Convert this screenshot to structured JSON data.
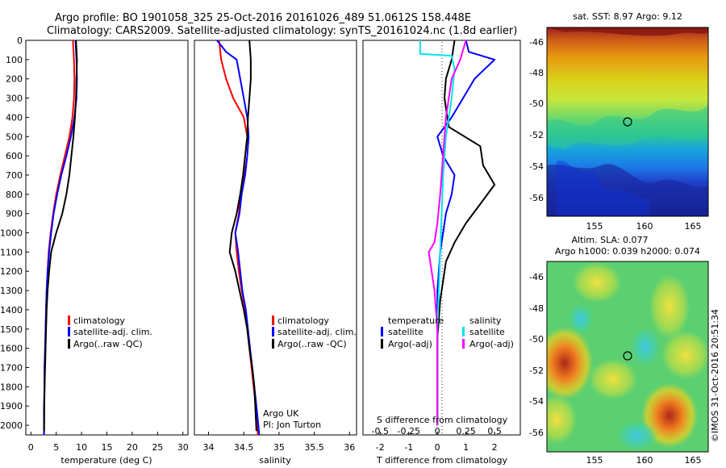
{
  "header": {
    "line1": "Argo profile: BO 1901058_325 25-Oct-2016 20161026_489 51.0612S 158.448E",
    "line2": "Climatology: CARS2009. Satellite-adjusted climatology: synTS_20161024.nc (1.8d earlier)"
  },
  "side_text": "©IMOS 31-Oct-2016 20:51:34",
  "colors": {
    "climatology": "#ff0000",
    "satellite": "#0000ff",
    "argo": "#000000",
    "cyan": "#00e5ee",
    "magenta": "#ff00ff"
  },
  "chart_data": [
    {
      "type": "line",
      "xlabel": "temperature (deg C)",
      "ylabel": "",
      "xlim": [
        -1,
        31
      ],
      "ylim": [
        2050,
        0
      ],
      "xticks": [
        "0",
        "5",
        "10",
        "15",
        "20",
        "25",
        "30"
      ],
      "yticks": [
        "0",
        "100",
        "200",
        "300",
        "400",
        "500",
        "600",
        "700",
        "800",
        "900",
        "1000",
        "1100",
        "1200",
        "1300",
        "1400",
        "1500",
        "1600",
        "1700",
        "1800",
        "1900",
        "2000"
      ],
      "legend": [
        "climatology",
        "satellite-adj. clim.",
        "Argo(..raw -QC)"
      ],
      "series": [
        {
          "name": "climatology",
          "color": "#ff0000",
          "x": [
            8.3,
            8.5,
            8.6,
            8.5,
            8.2,
            7.6,
            6.7,
            5.8,
            5.0,
            4.4,
            3.9,
            3.5,
            3.3,
            3.1,
            3.0,
            2.9,
            2.8,
            2.7,
            2.7,
            2.6,
            2.6
          ],
          "y": [
            0,
            100,
            200,
            300,
            400,
            500,
            600,
            700,
            800,
            900,
            1000,
            1100,
            1200,
            1300,
            1400,
            1500,
            1600,
            1700,
            1800,
            1900,
            2050
          ]
        },
        {
          "name": "satellite-adj. clim.",
          "color": "#0000ff",
          "x": [
            8.8,
            9.0,
            9.1,
            9.0,
            8.6,
            7.9,
            7.0,
            6.0,
            5.2,
            4.5,
            4.0,
            3.6,
            3.3,
            3.1,
            3.0,
            2.9,
            2.8,
            2.7,
            2.7,
            2.6,
            2.6
          ],
          "y": [
            0,
            100,
            200,
            300,
            400,
            500,
            600,
            700,
            800,
            900,
            1000,
            1100,
            1200,
            1300,
            1400,
            1500,
            1600,
            1700,
            1800,
            1900,
            2050
          ]
        },
        {
          "name": "Argo(..raw -QC)",
          "color": "#000000",
          "x": [
            8.9,
            9.1,
            9.0,
            8.9,
            8.7,
            8.4,
            8.0,
            7.6,
            7.0,
            6.2,
            5.0,
            4.0,
            3.6,
            3.3,
            3.1,
            3.0,
            2.9,
            2.8,
            2.7,
            2.6
          ],
          "y": [
            0,
            100,
            200,
            300,
            400,
            500,
            600,
            700,
            800,
            900,
            1000,
            1100,
            1200,
            1300,
            1400,
            1500,
            1600,
            1700,
            1800,
            2030
          ]
        }
      ]
    },
    {
      "type": "line",
      "xlabel": "salinity",
      "xlim": [
        33.8,
        36.1
      ],
      "ylim": [
        2050,
        0
      ],
      "xticks": [
        "34",
        "34.5",
        "35",
        "35.5",
        "36"
      ],
      "legend": [
        "climatology",
        "satellite-adj. clim.",
        "Argo(..raw -QC)"
      ],
      "annotation": [
        "Argo UK",
        "PI: Jon Turton"
      ],
      "series": [
        {
          "name": "climatology",
          "color": "#ff0000",
          "x": [
            34.15,
            34.18,
            34.25,
            34.35,
            34.5,
            34.55,
            34.52,
            34.5,
            34.45,
            34.43,
            34.38,
            34.4,
            34.43,
            34.47,
            34.52,
            34.55,
            34.58,
            34.61,
            34.64,
            34.67,
            34.7
          ],
          "y": [
            0,
            100,
            200,
            300,
            400,
            500,
            600,
            700,
            800,
            900,
            1000,
            1100,
            1200,
            1300,
            1400,
            1500,
            1600,
            1700,
            1800,
            1900,
            2050
          ]
        },
        {
          "name": "satellite-adj. clim.",
          "color": "#0000ff",
          "x": [
            34.12,
            34.25,
            34.4,
            34.5,
            34.55,
            34.57,
            34.55,
            34.52,
            34.47,
            34.44,
            34.38,
            34.42,
            34.45,
            34.48,
            34.53,
            34.56,
            34.59,
            34.62,
            34.65,
            34.68,
            34.72
          ],
          "y": [
            0,
            60,
            100,
            300,
            400,
            500,
            600,
            700,
            800,
            900,
            1000,
            1100,
            1200,
            1300,
            1400,
            1500,
            1600,
            1700,
            1800,
            1900,
            2050
          ]
        },
        {
          "name": "Argo(..raw -QC)",
          "color": "#000000",
          "x": [
            34.58,
            34.6,
            34.6,
            34.58,
            34.56,
            34.55,
            34.52,
            34.49,
            34.45,
            34.4,
            34.33,
            34.3,
            34.38,
            34.44,
            34.5,
            34.55,
            34.58,
            34.62,
            34.65,
            34.68
          ],
          "y": [
            0,
            100,
            200,
            300,
            400,
            500,
            600,
            700,
            800,
            900,
            1000,
            1100,
            1200,
            1300,
            1400,
            1500,
            1600,
            1700,
            1800,
            2030
          ]
        }
      ]
    },
    {
      "type": "line",
      "xlabel": "T difference from climatology",
      "xlabel_top": "S difference from climatology",
      "xlim": [
        -2.6,
        2.9
      ],
      "ylim": [
        2050,
        0
      ],
      "xticks": [
        "-2",
        "-1",
        "0",
        "1",
        "2"
      ],
      "xticks_top": [
        "-0.5",
        "-0.25",
        "0",
        "0.25",
        "0.5"
      ],
      "legend_groups": [
        {
          "title": "temperature",
          "items": [
            "satellite",
            "Argo(-adj)"
          ]
        },
        {
          "title": "salinity",
          "items": [
            "satellite",
            "Argo(-adj)"
          ]
        }
      ],
      "series": [
        {
          "name": "satellite",
          "color": "#0000ff",
          "x": [
            1.0,
            1.1,
            2.0,
            1.3,
            0.5,
            0.0,
            0.2,
            0.6,
            0.5,
            0.3,
            0.2,
            0.1,
            0.05,
            0.0,
            0.0,
            0.0,
            0.0,
            0.0,
            0.0,
            0.0
          ],
          "y": [
            0,
            60,
            100,
            200,
            400,
            500,
            600,
            700,
            800,
            900,
            1000,
            1100,
            1200,
            1300,
            1400,
            1500,
            1600,
            1700,
            1800,
            2000
          ]
        },
        {
          "name": "Argo(-adj)",
          "color": "#000000",
          "x": [
            0.6,
            0.5,
            0.3,
            0.25,
            0.4,
            1.5,
            1.6,
            2.0,
            1.5,
            1.0,
            0.6,
            0.3,
            0.2,
            0.1,
            0.05,
            0.0,
            0.0,
            0.0,
            0.0,
            0.0
          ],
          "y": [
            0,
            100,
            200,
            300,
            450,
            550,
            650,
            750,
            850,
            950,
            1050,
            1150,
            1250,
            1350,
            1450,
            1550,
            1650,
            1750,
            1850,
            2000
          ]
        },
        {
          "name": "satellite",
          "color": "#00e5ee",
          "x": [
            -0.6,
            -0.6,
            0.5,
            0.6,
            0.5,
            0.3,
            0.2,
            0.15,
            0.1,
            0.05,
            0.0,
            0.0,
            0.0,
            0.0
          ],
          "y": [
            0,
            70,
            80,
            150,
            300,
            500,
            700,
            900,
            1100,
            1300,
            1500,
            1700,
            1900,
            2000
          ]
        },
        {
          "name": "Argo(-adj)",
          "color": "#ff00ff",
          "x": [
            1.0,
            0.8,
            0.5,
            0.3,
            0.2,
            0.1,
            0.0,
            -0.1,
            -0.3,
            -0.2,
            -0.1,
            0.0,
            0.0,
            0.0,
            0.0
          ],
          "y": [
            0,
            100,
            200,
            400,
            600,
            800,
            950,
            1050,
            1100,
            1200,
            1300,
            1500,
            1700,
            1900,
            2000
          ]
        }
      ]
    },
    {
      "type": "heatmap",
      "title": "sat. SST: 8.97  Argo: 9.12",
      "xticks": [
        "155",
        "160",
        "165"
      ],
      "yticks": [
        "-46",
        "-48",
        "-50",
        "-52",
        "-54",
        "-56"
      ]
    },
    {
      "type": "heatmap",
      "title_line1": "Altim. SLA: 0.077",
      "title_line2": "Argo h1000: 0.039 h2000: 0.074",
      "xticks": [
        "155",
        "160",
        "165"
      ],
      "yticks": [
        "-46",
        "-48",
        "-50",
        "-52",
        "-54",
        "-56"
      ]
    }
  ]
}
